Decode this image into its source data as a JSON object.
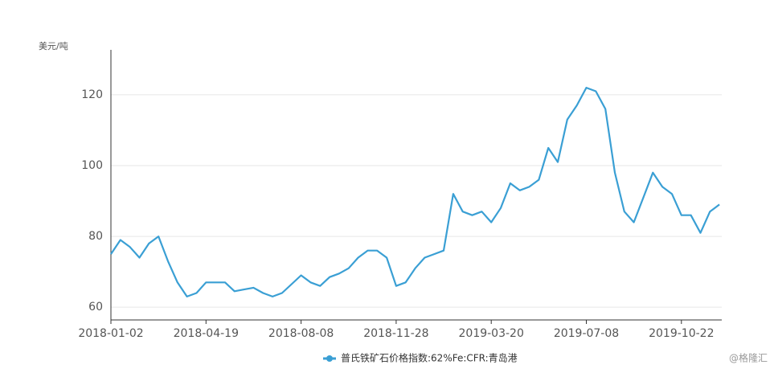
{
  "chart_data": {
    "type": "line",
    "y_unit": "美元/吨",
    "watermark": "@格隆汇",
    "categories": [
      "2018-01-02",
      null,
      null,
      null,
      null,
      null,
      null,
      null,
      null,
      null,
      "2018-04-19",
      null,
      null,
      null,
      null,
      null,
      null,
      null,
      null,
      null,
      "2018-08-08",
      null,
      null,
      null,
      null,
      null,
      null,
      null,
      null,
      null,
      "2018-11-28",
      null,
      null,
      null,
      null,
      null,
      null,
      null,
      null,
      null,
      "2019-03-20",
      null,
      null,
      null,
      null,
      null,
      null,
      null,
      null,
      null,
      "2019-07-08",
      null,
      null,
      null,
      null,
      null,
      null,
      null,
      null,
      null,
      "2019-10-22",
      null,
      null,
      null,
      null
    ],
    "series": [
      {
        "name": "普氏铁矿石价格指数:62%Fe:CFR:青岛港",
        "color": "#3a9fd4",
        "values": [
          75,
          79,
          77,
          74,
          78,
          80,
          73,
          67,
          63,
          64,
          67,
          67,
          67,
          64.5,
          65,
          65.5,
          64,
          63,
          64,
          66.5,
          69,
          67,
          66,
          68.5,
          69.5,
          71,
          74,
          76,
          76,
          74,
          66,
          67,
          71,
          74,
          75,
          76,
          92,
          87,
          86,
          87,
          84,
          88,
          95,
          93,
          94,
          96,
          105,
          101,
          113,
          117,
          122,
          121,
          116,
          98,
          87,
          84,
          91,
          98,
          94,
          92,
          86,
          86,
          81,
          87,
          89
        ]
      }
    ],
    "ylim": [
      56.4,
      132.7
    ],
    "yticks": [
      60,
      80,
      100,
      120
    ],
    "grid": true,
    "legend": "bottom"
  }
}
